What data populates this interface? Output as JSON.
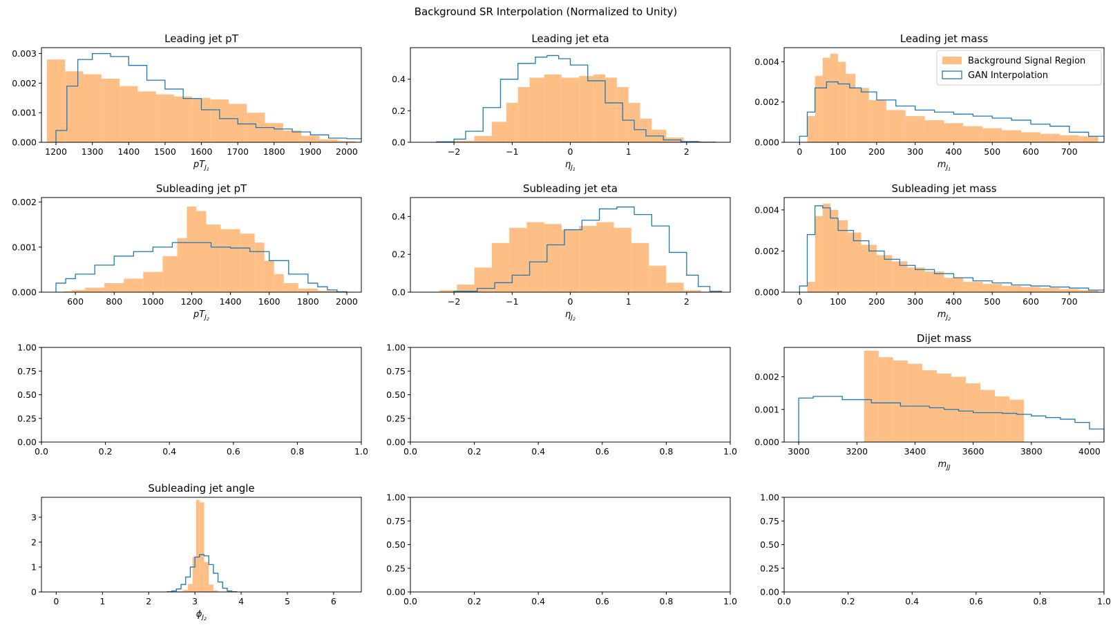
{
  "figure": {
    "suptitle": "Background SR Interpolation (Normalized to Unity)"
  },
  "colors": {
    "hist_fill": "#fdbf86",
    "step_line": "#1f77b4"
  },
  "legend": {
    "fill_label": "Background Signal Region",
    "step_label": "GAN Interpolation"
  },
  "chart_data": [
    {
      "type": "bar",
      "title": "Leading jet pT",
      "xlabel": "pT",
      "xlabel_sub": "J",
      "xlabel_subsub": "1",
      "xlim": [
        1160,
        2040
      ],
      "ylim": [
        0,
        0.0032
      ],
      "xticks": [
        1200,
        1300,
        1400,
        1500,
        1600,
        1700,
        1800,
        1900,
        2000
      ],
      "xtick_labels": [
        "1200",
        "1300",
        "1400",
        "1500",
        "1600",
        "1700",
        "1800",
        "1900",
        "2000"
      ],
      "yticks": [
        0,
        0.001,
        0.002,
        0.003
      ],
      "ytick_labels": [
        "0.000",
        "0.001",
        "0.002",
        "0.003"
      ],
      "fill": {
        "x": [
          1200,
          1250,
          1300,
          1350,
          1400,
          1450,
          1500,
          1550,
          1600,
          1650,
          1700,
          1750,
          1800,
          1850,
          1900,
          1950,
          2000
        ],
        "y": [
          0.0028,
          0.0024,
          0.0023,
          0.00215,
          0.0019,
          0.00172,
          0.00162,
          0.00155,
          0.0015,
          0.00145,
          0.0013,
          0.001,
          0.00065,
          0.0004,
          0.00022,
          0.0001,
          4e-05
        ]
      },
      "step": {
        "x": [
          1200,
          1230,
          1260,
          1300,
          1350,
          1400,
          1450,
          1500,
          1550,
          1600,
          1650,
          1700,
          1750,
          1800,
          1850,
          1900,
          1950,
          2000
        ],
        "y": [
          0.0004,
          0.0019,
          0.0028,
          0.003,
          0.0029,
          0.0026,
          0.0021,
          0.0018,
          0.00148,
          0.0011,
          0.0008,
          0.00062,
          0.0005,
          0.00045,
          0.00035,
          0.00025,
          0.00014,
          0.00012
        ]
      }
    },
    {
      "type": "bar",
      "title": "Leading jet eta",
      "xlabel": "η",
      "xlabel_sub": "J",
      "xlabel_subsub": "1",
      "xlim": [
        -2.75,
        2.75
      ],
      "ylim": [
        0,
        0.6
      ],
      "xticks": [
        -2,
        -1,
        0,
        1,
        2
      ],
      "xtick_labels": [
        "−2",
        "−1",
        "0",
        "1",
        "2"
      ],
      "yticks": [
        0,
        0.2,
        0.4
      ],
      "ytick_labels": [
        "0.0",
        "0.2",
        "0.4"
      ],
      "fill": {
        "x": [
          -2.2,
          -1.8,
          -1.5,
          -1.2,
          -1.0,
          -0.8,
          -0.6,
          -0.3,
          0.0,
          0.3,
          0.5,
          0.7,
          0.9,
          1.1,
          1.3,
          1.5,
          1.8,
          2.1,
          2.4
        ],
        "y": [
          0.002,
          0.01,
          0.04,
          0.13,
          0.25,
          0.35,
          0.41,
          0.43,
          0.41,
          0.42,
          0.43,
          0.41,
          0.35,
          0.25,
          0.15,
          0.08,
          0.03,
          0.008,
          0.001
        ]
      },
      "step": {
        "x": [
          -2.3,
          -2.0,
          -1.8,
          -1.5,
          -1.2,
          -0.9,
          -0.6,
          -0.4,
          -0.2,
          0.0,
          0.3,
          0.6,
          0.9,
          1.1,
          1.3,
          1.6,
          1.9,
          2.2
        ],
        "y": [
          0.003,
          0.02,
          0.07,
          0.22,
          0.4,
          0.5,
          0.54,
          0.55,
          0.53,
          0.49,
          0.39,
          0.25,
          0.14,
          0.08,
          0.04,
          0.015,
          0.004,
          0.001
        ]
      }
    },
    {
      "type": "bar",
      "title": "Leading jet mass",
      "xlabel": "m",
      "xlabel_sub": "J",
      "xlabel_subsub": "1",
      "xlim": [
        -40,
        790
      ],
      "ylim": [
        0,
        0.0047
      ],
      "xticks": [
        0,
        100,
        200,
        300,
        400,
        500,
        600,
        700
      ],
      "xtick_labels": [
        "0",
        "100",
        "200",
        "300",
        "400",
        "500",
        "600",
        "700"
      ],
      "yticks": [
        0,
        0.002,
        0.004
      ],
      "ytick_labels": [
        "0.000",
        "0.002",
        "0.004"
      ],
      "legend_placement": "top-right",
      "fill": {
        "x": [
          30,
          50,
          70,
          90,
          110,
          130,
          160,
          200,
          250,
          300,
          350,
          400,
          450,
          500,
          550,
          600,
          650,
          700,
          750
        ],
        "y": [
          0.0013,
          0.0033,
          0.0042,
          0.0044,
          0.004,
          0.0034,
          0.0027,
          0.0021,
          0.0016,
          0.0013,
          0.0011,
          0.00095,
          0.0008,
          0.0007,
          0.0006,
          0.0005,
          0.00042,
          0.00035,
          0.0003
        ]
      },
      "step": {
        "x": [
          0,
          20,
          40,
          70,
          100,
          130,
          160,
          200,
          250,
          300,
          350,
          400,
          450,
          500,
          550,
          600,
          650,
          700,
          750
        ],
        "y": [
          0.0003,
          0.0015,
          0.0027,
          0.003,
          0.0029,
          0.0027,
          0.0025,
          0.0021,
          0.0018,
          0.0016,
          0.0015,
          0.0014,
          0.0013,
          0.0012,
          0.0011,
          0.0009,
          0.0008,
          0.0005,
          0.0003
        ]
      }
    },
    {
      "type": "bar",
      "title": "Subleading jet pT",
      "xlabel": "pT",
      "xlabel_sub": "J",
      "xlabel_subsub": "2",
      "xlim": [
        425,
        2075
      ],
      "ylim": [
        0,
        0.0021
      ],
      "xticks": [
        600,
        800,
        1000,
        1200,
        1400,
        1600,
        1800,
        2000
      ],
      "xtick_labels": [
        "600",
        "800",
        "1000",
        "1200",
        "1400",
        "1600",
        "1800",
        "2000"
      ],
      "yticks": [
        0,
        0.001,
        0.002
      ],
      "ytick_labels": [
        "0.000",
        "0.001",
        "0.002"
      ],
      "fill": {
        "x": [
          560,
          600,
          700,
          800,
          900,
          1000,
          1100,
          1150,
          1200,
          1250,
          1300,
          1400,
          1500,
          1550,
          1600,
          1650,
          1700,
          1800,
          1900,
          2000
        ],
        "y": [
          2e-05,
          5e-05,
          0.0001,
          0.0002,
          0.0003,
          0.00045,
          0.0008,
          0.0012,
          0.0019,
          0.0018,
          0.0015,
          0.0014,
          0.0013,
          0.0011,
          0.0007,
          0.0004,
          0.0002,
          8e-05,
          3e-05,
          1e-05
        ]
      },
      "step": {
        "x": [
          500,
          550,
          600,
          700,
          800,
          900,
          1000,
          1100,
          1200,
          1300,
          1400,
          1500,
          1600,
          1700,
          1800,
          1850,
          1900,
          1950
        ],
        "y": [
          0.0002,
          0.0003,
          0.0004,
          0.0006,
          0.0008,
          0.0009,
          0.001,
          0.0011,
          0.0011,
          0.001,
          0.00098,
          0.0009,
          0.0007,
          0.0004,
          0.0002,
          0.00012,
          5e-05,
          1e-05
        ]
      }
    },
    {
      "type": "bar",
      "title": "Subleading jet eta",
      "xlabel": "η",
      "xlabel_sub": "J",
      "xlabel_subsub": "2",
      "xlim": [
        -2.75,
        2.75
      ],
      "ylim": [
        0,
        0.5
      ],
      "xticks": [
        -2,
        -1,
        0,
        1,
        2
      ],
      "xtick_labels": [
        "−2",
        "−1",
        "0",
        "1",
        "2"
      ],
      "yticks": [
        0,
        0.2,
        0.4
      ],
      "ytick_labels": [
        "0.0",
        "0.2",
        "0.4"
      ],
      "fill": {
        "x": [
          -2.4,
          -2.1,
          -1.8,
          -1.5,
          -1.2,
          -0.9,
          -0.6,
          -0.3,
          0.0,
          0.3,
          0.6,
          0.9,
          1.2,
          1.5,
          1.8,
          2.1,
          2.4
        ],
        "y": [
          0.002,
          0.01,
          0.04,
          0.13,
          0.26,
          0.34,
          0.37,
          0.36,
          0.33,
          0.35,
          0.37,
          0.34,
          0.26,
          0.14,
          0.05,
          0.01,
          0.002
        ]
      },
      "step": {
        "x": [
          -2.0,
          -1.6,
          -1.3,
          -1.0,
          -0.7,
          -0.4,
          -0.1,
          0.2,
          0.5,
          0.8,
          1.1,
          1.4,
          1.7,
          2.0,
          2.2,
          2.4
        ],
        "y": [
          0.005,
          0.02,
          0.05,
          0.09,
          0.16,
          0.25,
          0.33,
          0.38,
          0.44,
          0.45,
          0.41,
          0.35,
          0.21,
          0.09,
          0.03,
          0.005
        ]
      }
    },
    {
      "type": "bar",
      "title": "Subleading jet mass",
      "xlabel": "m",
      "xlabel_sub": "J",
      "xlabel_subsub": "2",
      "xlim": [
        -40,
        790
      ],
      "ylim": [
        0,
        0.0046
      ],
      "xticks": [
        0,
        100,
        200,
        300,
        400,
        500,
        600,
        700
      ],
      "xtick_labels": [
        "0",
        "100",
        "200",
        "300",
        "400",
        "500",
        "600",
        "700"
      ],
      "yticks": [
        0,
        0.002,
        0.004
      ],
      "ytick_labels": [
        "0.000",
        "0.002",
        "0.004"
      ],
      "fill": {
        "x": [
          30,
          50,
          70,
          90,
          110,
          140,
          180,
          220,
          260,
          300,
          350,
          400,
          450,
          500,
          550,
          600,
          650,
          700,
          750
        ],
        "y": [
          0.0005,
          0.0037,
          0.0043,
          0.004,
          0.0035,
          0.0029,
          0.0023,
          0.0018,
          0.0015,
          0.0012,
          0.001,
          0.0007,
          0.0005,
          0.0004,
          0.0003,
          0.00025,
          0.0002,
          0.00015,
          0.0001
        ]
      },
      "step": {
        "x": [
          0,
          20,
          40,
          60,
          80,
          100,
          140,
          180,
          220,
          260,
          300,
          350,
          400,
          450,
          500,
          550,
          600,
          650,
          700,
          750
        ],
        "y": [
          0.0003,
          0.0028,
          0.0042,
          0.0041,
          0.0036,
          0.003,
          0.0025,
          0.002,
          0.0016,
          0.0013,
          0.0011,
          0.0009,
          0.0007,
          0.00055,
          0.00045,
          0.00035,
          0.0003,
          0.00025,
          0.0002,
          0.0001
        ]
      }
    },
    {
      "type": "bar",
      "title": "",
      "empty": true,
      "xlim": [
        0,
        1
      ],
      "ylim": [
        0,
        1
      ],
      "xticks": [
        0,
        0.2,
        0.4,
        0.6,
        0.8,
        1.0
      ],
      "xtick_labels": [
        "0.0",
        "0.2",
        "0.4",
        "0.6",
        "0.8",
        "1.0"
      ],
      "yticks": [
        0,
        0.25,
        0.5,
        0.75,
        1.0
      ],
      "ytick_labels": [
        "0.00",
        "0.25",
        "0.50",
        "0.75",
        "1.00"
      ]
    },
    {
      "type": "bar",
      "title": "",
      "empty": true,
      "xlim": [
        0,
        1
      ],
      "ylim": [
        0,
        1
      ],
      "xticks": [
        0,
        0.2,
        0.4,
        0.6,
        0.8,
        1.0
      ],
      "xtick_labels": [
        "0.0",
        "0.2",
        "0.4",
        "0.6",
        "0.8",
        "1.0"
      ],
      "yticks": [
        0,
        0.25,
        0.5,
        0.75,
        1.0
      ],
      "ytick_labels": [
        "0.00",
        "0.25",
        "0.50",
        "0.75",
        "1.00"
      ]
    },
    {
      "type": "bar",
      "title": "Dijet mass",
      "xlabel": "m",
      "xlabel_sub": "JJ",
      "xlabel_subsub": "",
      "xlim": [
        2950,
        4050
      ],
      "ylim": [
        0,
        0.0029
      ],
      "xticks": [
        3000,
        3200,
        3400,
        3600,
        3800,
        4000
      ],
      "xtick_labels": [
        "3000",
        "3200",
        "3400",
        "3600",
        "3800",
        "4000"
      ],
      "yticks": [
        0,
        0.001,
        0.002
      ],
      "ytick_labels": [
        "0.000",
        "0.001",
        "0.002"
      ],
      "fill": {
        "x": [
          3250,
          3300,
          3350,
          3400,
          3450,
          3500,
          3550,
          3600,
          3650,
          3700,
          3750
        ],
        "y": [
          0.0028,
          0.0026,
          0.0025,
          0.0024,
          0.0022,
          0.0021,
          0.002,
          0.0018,
          0.0016,
          0.0014,
          0.0013
        ]
      },
      "step": {
        "x": [
          3000,
          3050,
          3100,
          3150,
          3200,
          3250,
          3300,
          3350,
          3400,
          3450,
          3500,
          3550,
          3600,
          3650,
          3700,
          3750,
          3800,
          3850,
          3900,
          3950,
          4000
        ],
        "y": [
          0.00135,
          0.0014,
          0.0014,
          0.0013,
          0.0013,
          0.0012,
          0.0012,
          0.0011,
          0.0011,
          0.00105,
          0.001,
          0.00095,
          0.0009,
          0.0009,
          0.00088,
          0.00085,
          0.0008,
          0.00075,
          0.0007,
          0.0006,
          0.0004
        ]
      }
    },
    {
      "type": "bar",
      "title": "Subleading jet angle",
      "xlabel": "ϕ",
      "xlabel_sub": "J",
      "xlabel_subsub": "2",
      "xlim": [
        -0.32,
        6.6
      ],
      "ylim": [
        0,
        3.8
      ],
      "xticks": [
        0,
        1,
        2,
        3,
        4,
        5,
        6
      ],
      "xtick_labels": [
        "0",
        "1",
        "2",
        "3",
        "4",
        "5",
        "6"
      ],
      "yticks": [
        0,
        1,
        2,
        3
      ],
      "ytick_labels": [
        "0",
        "1",
        "2",
        "3"
      ],
      "fill": {
        "x": [
          2.6,
          2.7,
          2.8,
          2.9,
          3.0,
          3.05,
          3.15,
          3.25,
          3.35,
          3.45,
          3.55,
          3.65
        ],
        "y": [
          0.005,
          0.02,
          0.08,
          0.32,
          1.4,
          3.7,
          3.6,
          1.2,
          0.3,
          0.06,
          0.015,
          0.003
        ]
      },
      "step": {
        "x": [
          2.4,
          2.5,
          2.6,
          2.7,
          2.8,
          2.9,
          3.0,
          3.1,
          3.2,
          3.3,
          3.4,
          3.5,
          3.6,
          3.7,
          3.8
        ],
        "y": [
          0.01,
          0.04,
          0.12,
          0.3,
          0.6,
          1.0,
          1.4,
          1.5,
          1.45,
          1.1,
          0.75,
          0.4,
          0.15,
          0.04,
          0.01
        ]
      }
    },
    {
      "type": "bar",
      "title": "",
      "empty": true,
      "xlim": [
        0,
        1
      ],
      "ylim": [
        0,
        1
      ],
      "xticks": [
        0,
        0.2,
        0.4,
        0.6,
        0.8,
        1.0
      ],
      "xtick_labels": [
        "0.0",
        "0.2",
        "0.4",
        "0.6",
        "0.8",
        "1.0"
      ],
      "yticks": [
        0,
        0.25,
        0.5,
        0.75,
        1.0
      ],
      "ytick_labels": [
        "0.00",
        "0.25",
        "0.50",
        "0.75",
        "1.00"
      ]
    },
    {
      "type": "bar",
      "title": "",
      "empty": true,
      "xlim": [
        0,
        1
      ],
      "ylim": [
        0,
        1
      ],
      "xticks": [
        0,
        0.2,
        0.4,
        0.6,
        0.8,
        1.0
      ],
      "xtick_labels": [
        "0.0",
        "0.2",
        "0.4",
        "0.6",
        "0.8",
        "1.0"
      ],
      "yticks": [
        0,
        0.25,
        0.5,
        0.75,
        1.0
      ],
      "ytick_labels": [
        "0.00",
        "0.25",
        "0.50",
        "0.75",
        "1.00"
      ]
    }
  ]
}
